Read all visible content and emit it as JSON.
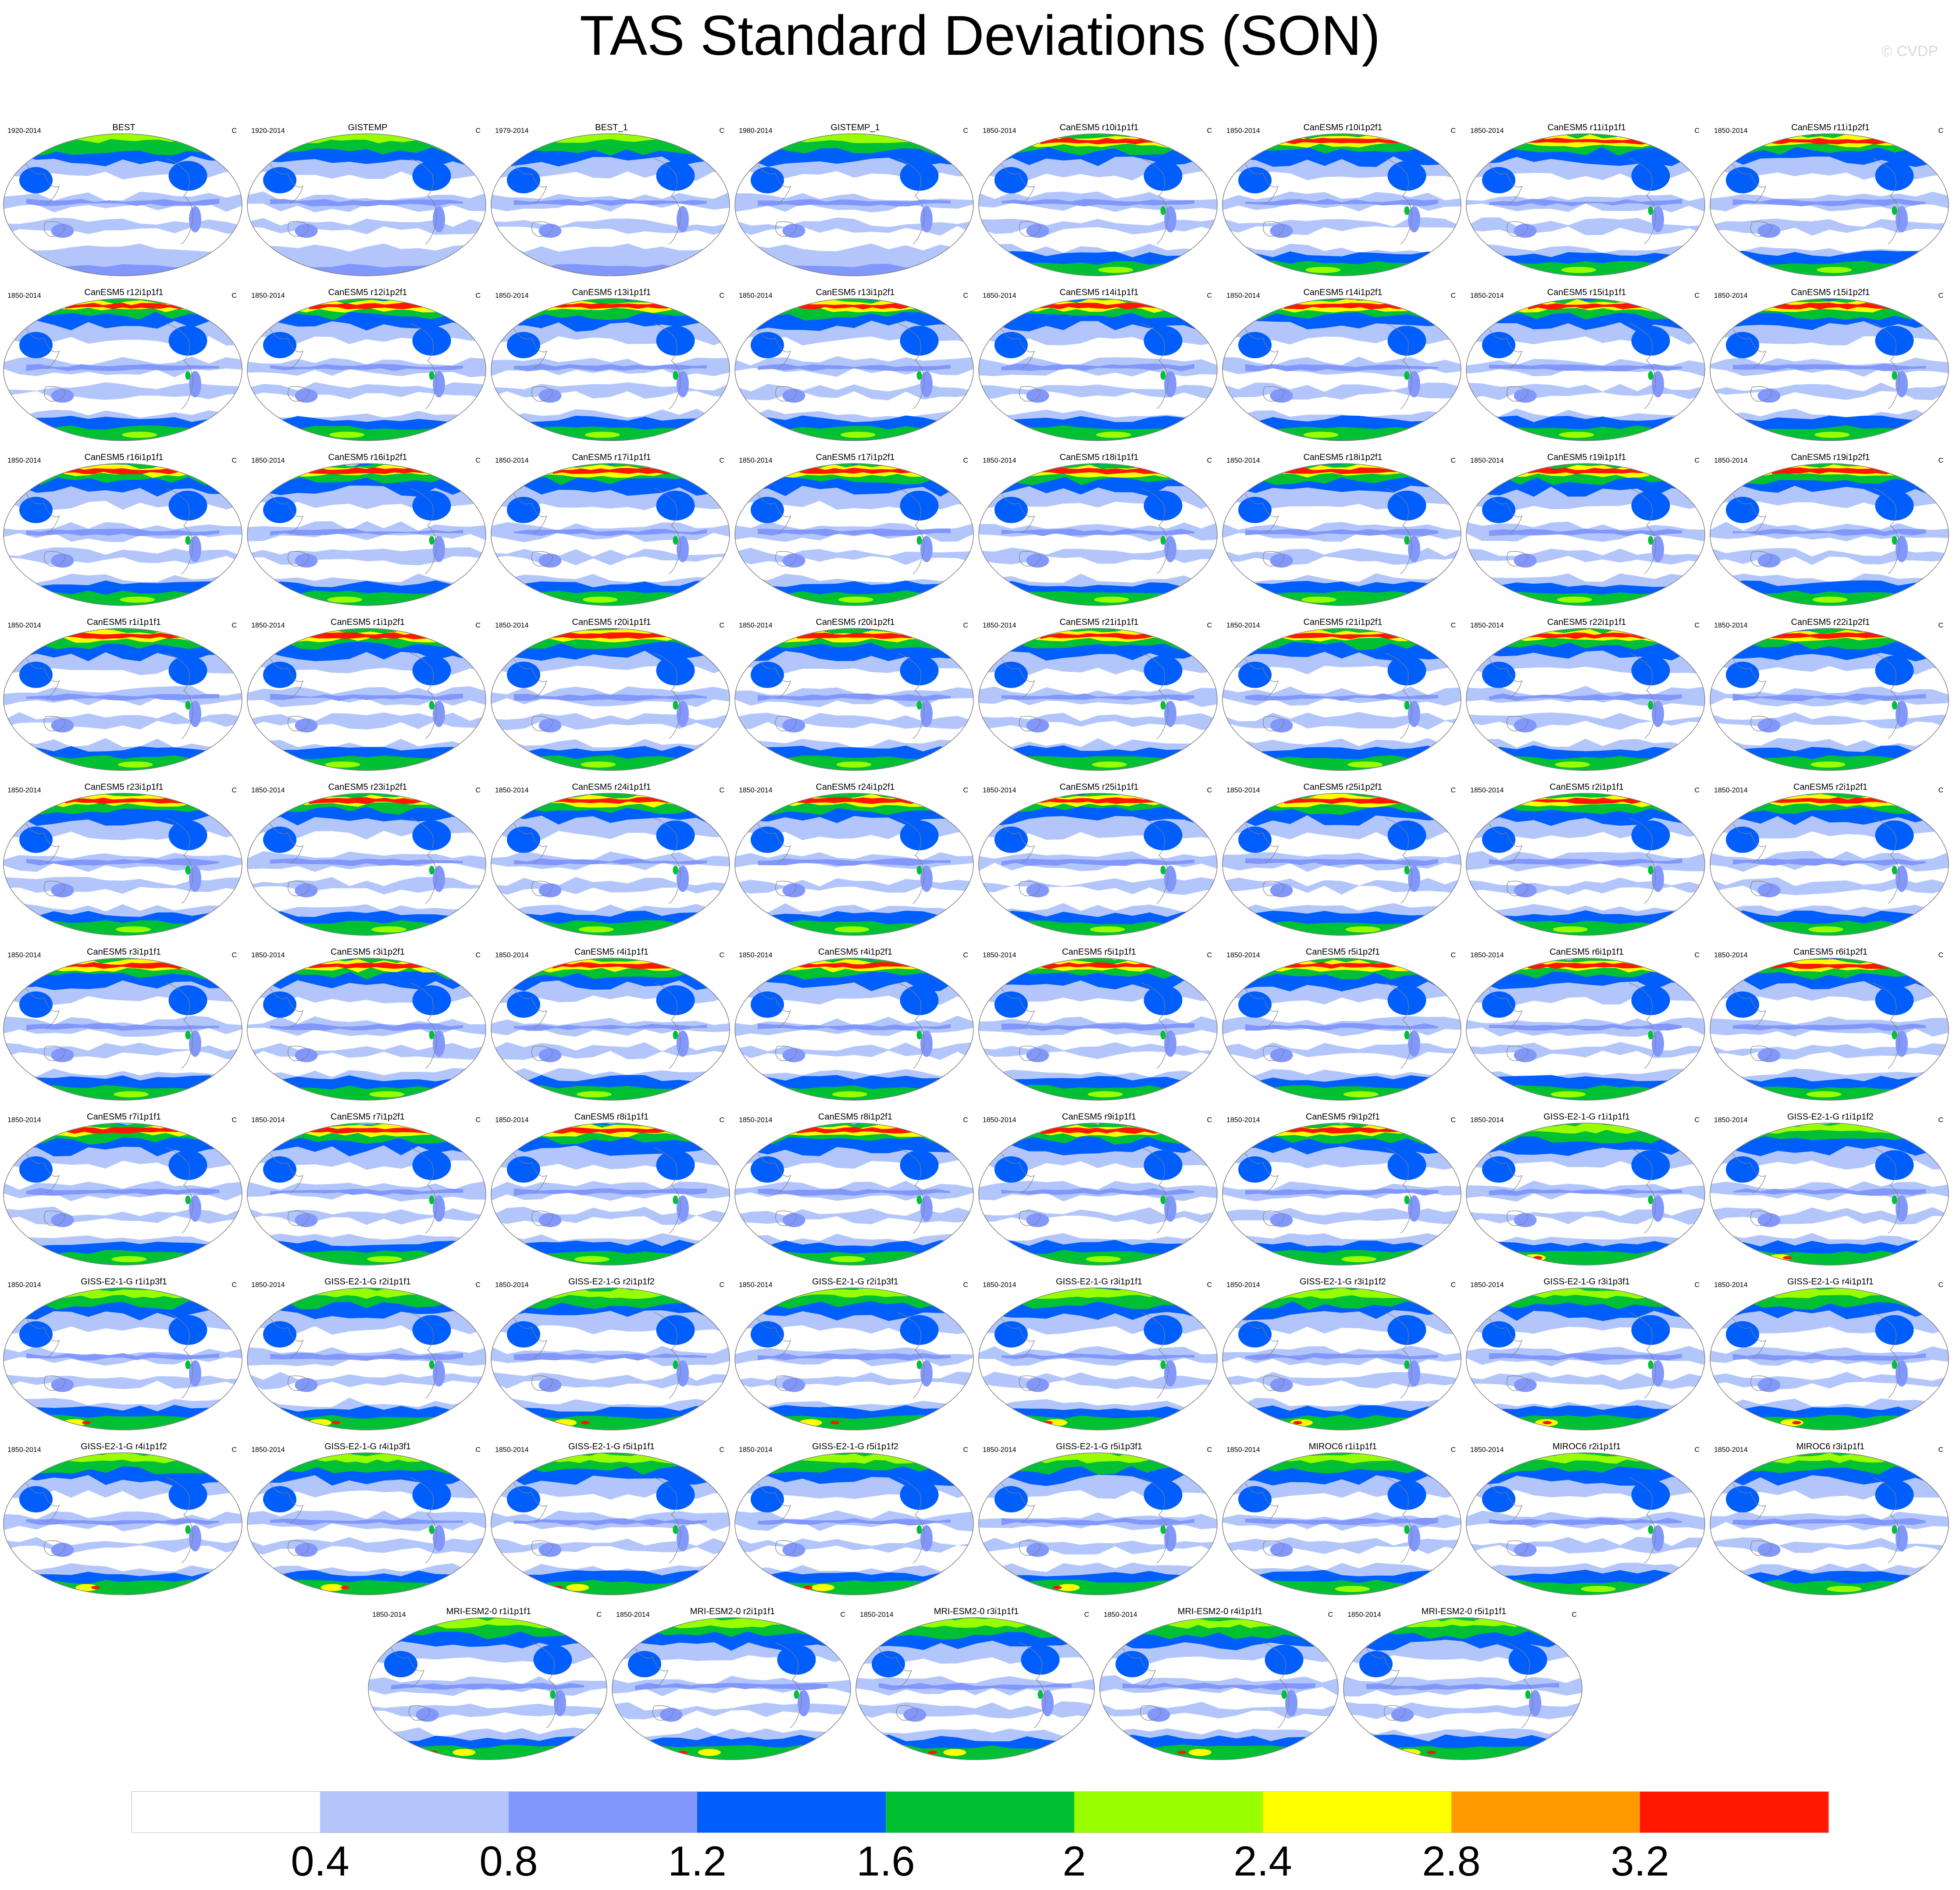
{
  "title": "TAS Standard Deviations (SON)",
  "watermark": "© CVDP",
  "units": "C",
  "colorbar": {
    "colors": [
      "#ffffff",
      "#b3c6fb",
      "#8197fb",
      "#005efd",
      "#02c033",
      "#99ff00",
      "#ffff00",
      "#ff9a00",
      "#ff1700"
    ],
    "tick_labels": [
      "0.4",
      "0.8",
      "1.2",
      "1.6",
      "2",
      "2.4",
      "2.8",
      "3.2"
    ]
  },
  "panel_colors": {
    "background": "#ffffff",
    "outline": "#7f7f7f",
    "coastline": "#7f7f7f"
  },
  "panels": [
    {
      "title": "BEST",
      "period": "1920-2014",
      "style": "obs"
    },
    {
      "title": "GISTEMP",
      "period": "1920-2014",
      "style": "obs"
    },
    {
      "title": "BEST_1",
      "period": "1979-2014",
      "style": "obs"
    },
    {
      "title": "GISTEMP_1",
      "period": "1980-2014",
      "style": "obs"
    },
    {
      "title": "CanESM5 r10i1p1f1",
      "period": "1850-2014",
      "style": "can"
    },
    {
      "title": "CanESM5 r10i1p2f1",
      "period": "1850-2014",
      "style": "can"
    },
    {
      "title": "CanESM5 r11i1p1f1",
      "period": "1850-2014",
      "style": "can"
    },
    {
      "title": "CanESM5 r11i1p2f1",
      "period": "1850-2014",
      "style": "can"
    },
    {
      "title": "CanESM5 r12i1p1f1",
      "period": "1850-2014",
      "style": "can"
    },
    {
      "title": "CanESM5 r12i1p2f1",
      "period": "1850-2014",
      "style": "can"
    },
    {
      "title": "CanESM5 r13i1p1f1",
      "period": "1850-2014",
      "style": "can"
    },
    {
      "title": "CanESM5 r13i1p2f1",
      "period": "1850-2014",
      "style": "can"
    },
    {
      "title": "CanESM5 r14i1p1f1",
      "period": "1850-2014",
      "style": "can"
    },
    {
      "title": "CanESM5 r14i1p2f1",
      "period": "1850-2014",
      "style": "can"
    },
    {
      "title": "CanESM5 r15i1p1f1",
      "period": "1850-2014",
      "style": "can"
    },
    {
      "title": "CanESM5 r15i1p2f1",
      "period": "1850-2014",
      "style": "can"
    },
    {
      "title": "CanESM5 r16i1p1f1",
      "period": "1850-2014",
      "style": "can"
    },
    {
      "title": "CanESM5 r16i1p2f1",
      "period": "1850-2014",
      "style": "can"
    },
    {
      "title": "CanESM5 r17i1p1f1",
      "period": "1850-2014",
      "style": "can"
    },
    {
      "title": "CanESM5 r17i1p2f1",
      "period": "1850-2014",
      "style": "can"
    },
    {
      "title": "CanESM5 r18i1p1f1",
      "period": "1850-2014",
      "style": "can"
    },
    {
      "title": "CanESM5 r18i1p2f1",
      "period": "1850-2014",
      "style": "can"
    },
    {
      "title": "CanESM5 r19i1p1f1",
      "period": "1850-2014",
      "style": "can"
    },
    {
      "title": "CanESM5 r19i1p2f1",
      "period": "1850-2014",
      "style": "can"
    },
    {
      "title": "CanESM5 r1i1p1f1",
      "period": "1850-2014",
      "style": "can"
    },
    {
      "title": "CanESM5 r1i1p2f1",
      "period": "1850-2014",
      "style": "can"
    },
    {
      "title": "CanESM5 r20i1p1f1",
      "period": "1850-2014",
      "style": "can"
    },
    {
      "title": "CanESM5 r20i1p2f1",
      "period": "1850-2014",
      "style": "can"
    },
    {
      "title": "CanESM5 r21i1p1f1",
      "period": "1850-2014",
      "style": "can"
    },
    {
      "title": "CanESM5 r21i1p2f1",
      "period": "1850-2014",
      "style": "can"
    },
    {
      "title": "CanESM5 r22i1p1f1",
      "period": "1850-2014",
      "style": "can"
    },
    {
      "title": "CanESM5 r22i1p2f1",
      "period": "1850-2014",
      "style": "can"
    },
    {
      "title": "CanESM5 r23i1p1f1",
      "period": "1850-2014",
      "style": "can"
    },
    {
      "title": "CanESM5 r23i1p2f1",
      "period": "1850-2014",
      "style": "can"
    },
    {
      "title": "CanESM5 r24i1p1f1",
      "period": "1850-2014",
      "style": "can"
    },
    {
      "title": "CanESM5 r24i1p2f1",
      "period": "1850-2014",
      "style": "can"
    },
    {
      "title": "CanESM5 r25i1p1f1",
      "period": "1850-2014",
      "style": "can"
    },
    {
      "title": "CanESM5 r25i1p2f1",
      "period": "1850-2014",
      "style": "can"
    },
    {
      "title": "CanESM5 r2i1p1f1",
      "period": "1850-2014",
      "style": "can"
    },
    {
      "title": "CanESM5 r2i1p2f1",
      "period": "1850-2014",
      "style": "can"
    },
    {
      "title": "CanESM5 r3i1p1f1",
      "period": "1850-2014",
      "style": "can"
    },
    {
      "title": "CanESM5 r3i1p2f1",
      "period": "1850-2014",
      "style": "can"
    },
    {
      "title": "CanESM5 r4i1p1f1",
      "period": "1850-2014",
      "style": "can"
    },
    {
      "title": "CanESM5 r4i1p2f1",
      "period": "1850-2014",
      "style": "can"
    },
    {
      "title": "CanESM5 r5i1p1f1",
      "period": "1850-2014",
      "style": "can"
    },
    {
      "title": "CanESM5 r5i1p2f1",
      "period": "1850-2014",
      "style": "can"
    },
    {
      "title": "CanESM5 r6i1p1f1",
      "period": "1850-2014",
      "style": "can"
    },
    {
      "title": "CanESM5 r6i1p2f1",
      "period": "1850-2014",
      "style": "can"
    },
    {
      "title": "CanESM5 r7i1p1f1",
      "period": "1850-2014",
      "style": "can"
    },
    {
      "title": "CanESM5 r7i1p2f1",
      "period": "1850-2014",
      "style": "can"
    },
    {
      "title": "CanESM5 r8i1p1f1",
      "period": "1850-2014",
      "style": "can"
    },
    {
      "title": "CanESM5 r8i1p2f1",
      "period": "1850-2014",
      "style": "can"
    },
    {
      "title": "CanESM5 r9i1p1f1",
      "period": "1850-2014",
      "style": "can"
    },
    {
      "title": "CanESM5 r9i1p2f1",
      "period": "1850-2014",
      "style": "can"
    },
    {
      "title": "GISS-E2-1-G r1i1p1f1",
      "period": "1850-2014",
      "style": "giss"
    },
    {
      "title": "GISS-E2-1-G r1i1p1f2",
      "period": "1850-2014",
      "style": "giss"
    },
    {
      "title": "GISS-E2-1-G r1i1p3f1",
      "period": "1850-2014",
      "style": "giss"
    },
    {
      "title": "GISS-E2-1-G r2i1p1f1",
      "period": "1850-2014",
      "style": "giss"
    },
    {
      "title": "GISS-E2-1-G r2i1p1f2",
      "period": "1850-2014",
      "style": "giss"
    },
    {
      "title": "GISS-E2-1-G r2i1p3f1",
      "period": "1850-2014",
      "style": "giss"
    },
    {
      "title": "GISS-E2-1-G r3i1p1f1",
      "period": "1850-2014",
      "style": "giss"
    },
    {
      "title": "GISS-E2-1-G r3i1p1f2",
      "period": "1850-2014",
      "style": "giss"
    },
    {
      "title": "GISS-E2-1-G r3i1p3f1",
      "period": "1850-2014",
      "style": "giss"
    },
    {
      "title": "GISS-E2-1-G r4i1p1f1",
      "period": "1850-2014",
      "style": "giss"
    },
    {
      "title": "GISS-E2-1-G r4i1p1f2",
      "period": "1850-2014",
      "style": "giss"
    },
    {
      "title": "GISS-E2-1-G r4i1p3f1",
      "period": "1850-2014",
      "style": "giss"
    },
    {
      "title": "GISS-E2-1-G r5i1p1f1",
      "period": "1850-2014",
      "style": "giss"
    },
    {
      "title": "GISS-E2-1-G r5i1p1f2",
      "period": "1850-2014",
      "style": "giss"
    },
    {
      "title": "GISS-E2-1-G r5i1p3f1",
      "period": "1850-2014",
      "style": "giss"
    },
    {
      "title": "MIROC6 r1i1p1f1",
      "period": "1850-2014",
      "style": "miroc"
    },
    {
      "title": "MIROC6 r2i1p1f1",
      "period": "1850-2014",
      "style": "miroc"
    },
    {
      "title": "MIROC6 r3i1p1f1",
      "period": "1850-2014",
      "style": "miroc"
    },
    {
      "title": "MRI-ESM2-0 r1i1p1f1",
      "period": "1850-2014",
      "style": "mri"
    },
    {
      "title": "MRI-ESM2-0 r2i1p1f1",
      "period": "1850-2014",
      "style": "mri"
    },
    {
      "title": "MRI-ESM2-0 r3i1p1f1",
      "period": "1850-2014",
      "style": "mri"
    },
    {
      "title": "MRI-ESM2-0 r4i1p1f1",
      "period": "1850-2014",
      "style": "mri"
    },
    {
      "title": "MRI-ESM2-0 r5i1p1f1",
      "period": "1850-2014",
      "style": "mri"
    }
  ]
}
